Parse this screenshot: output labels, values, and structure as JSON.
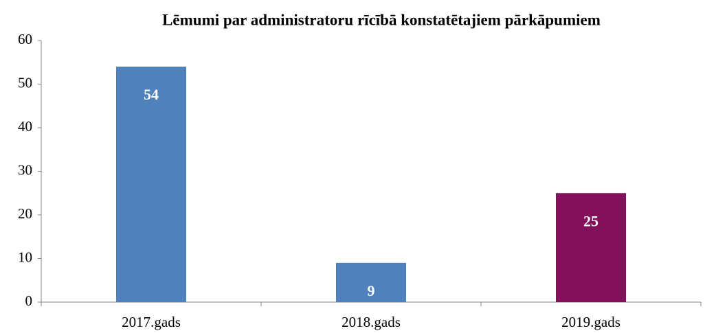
{
  "chart_data": {
    "type": "bar",
    "title": "Lēmumi par administratoru rīcībā konstatētajiem pārkāpumiem",
    "categories": [
      "2017.gads",
      "2018.gads",
      "2019.gads"
    ],
    "values": [
      54,
      9,
      25
    ],
    "colors": [
      "#4f81bd",
      "#4f81bd",
      "#83105a"
    ],
    "ylim": [
      0,
      60
    ],
    "yticks": [
      0,
      10,
      20,
      30,
      40,
      50,
      60
    ],
    "grid": false
  }
}
